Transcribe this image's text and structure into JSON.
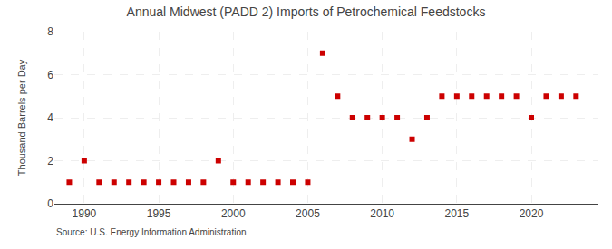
{
  "chart_data": {
    "type": "scatter",
    "title": "Annual Midwest (PADD 2) Imports of Petrochemical Feedstocks",
    "y_label": "Thousand Barrels per Day",
    "annotations": [
      "Source: U.S. Energy Information Administration"
    ],
    "x": [
      1989,
      1990,
      1991,
      1992,
      1993,
      1994,
      1995,
      1996,
      1997,
      1998,
      1999,
      2000,
      2001,
      2002,
      2003,
      2004,
      2005,
      2006,
      2007,
      2008,
      2009,
      2010,
      2011,
      2012,
      2013,
      2014,
      2015,
      2016,
      2017,
      2018,
      2019,
      2020,
      2021,
      2022,
      2023
    ],
    "values": [
      1,
      2,
      1,
      1,
      1,
      1,
      1,
      1,
      1,
      1,
      2,
      1,
      1,
      1,
      1,
      1,
      1,
      7,
      5,
      4,
      4,
      4,
      4,
      3,
      4,
      5,
      5,
      5,
      5,
      5,
      5,
      4,
      5,
      5,
      5
    ],
    "color": "#cc0000",
    "marker": "square",
    "xlim": [
      1988.0,
      2024.5
    ],
    "xticks": [
      1990,
      1995,
      2000,
      2005,
      2010,
      2015,
      2020
    ],
    "ylim": [
      0,
      8
    ],
    "yticks": [
      0,
      2,
      4,
      6,
      8
    ],
    "grid": true
  }
}
